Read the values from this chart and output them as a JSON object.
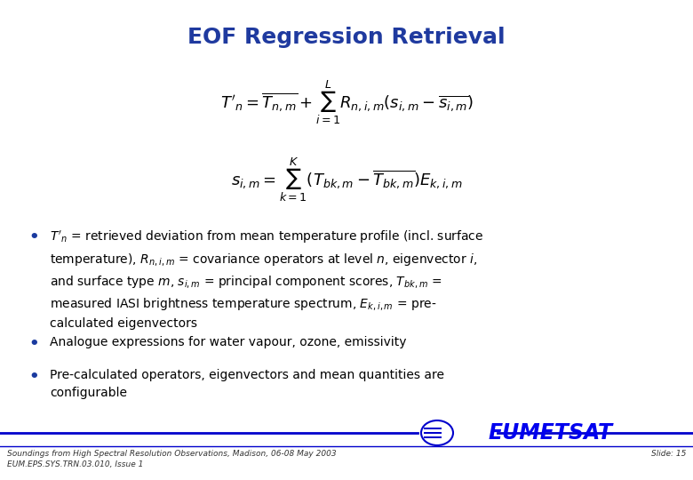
{
  "title": "EOF Regression Retrieval",
  "title_color": "#1F3A9F",
  "title_fontsize": 18,
  "bg_color": "#FFFFFF",
  "text_color": "#000000",
  "bullet_color": "#1a3a9f",
  "footer_color": "#333333",
  "line_color": "#0000CC",
  "eumetsat_color": "#0000EE",
  "footer_left1": "Soundings from High Spectral Resolution Observations, Madison, 06-08 May 2003",
  "footer_left2": "EUM.EPS.SYS.TRN.03.010, Issue 1",
  "footer_right": "Slide: 15",
  "bullet2_text": "Analogue expressions for water vapour, ozone, emissivity",
  "bullet3_text": "Pre-calculated operators, eigenvectors and mean quantities are\nconfigurable"
}
